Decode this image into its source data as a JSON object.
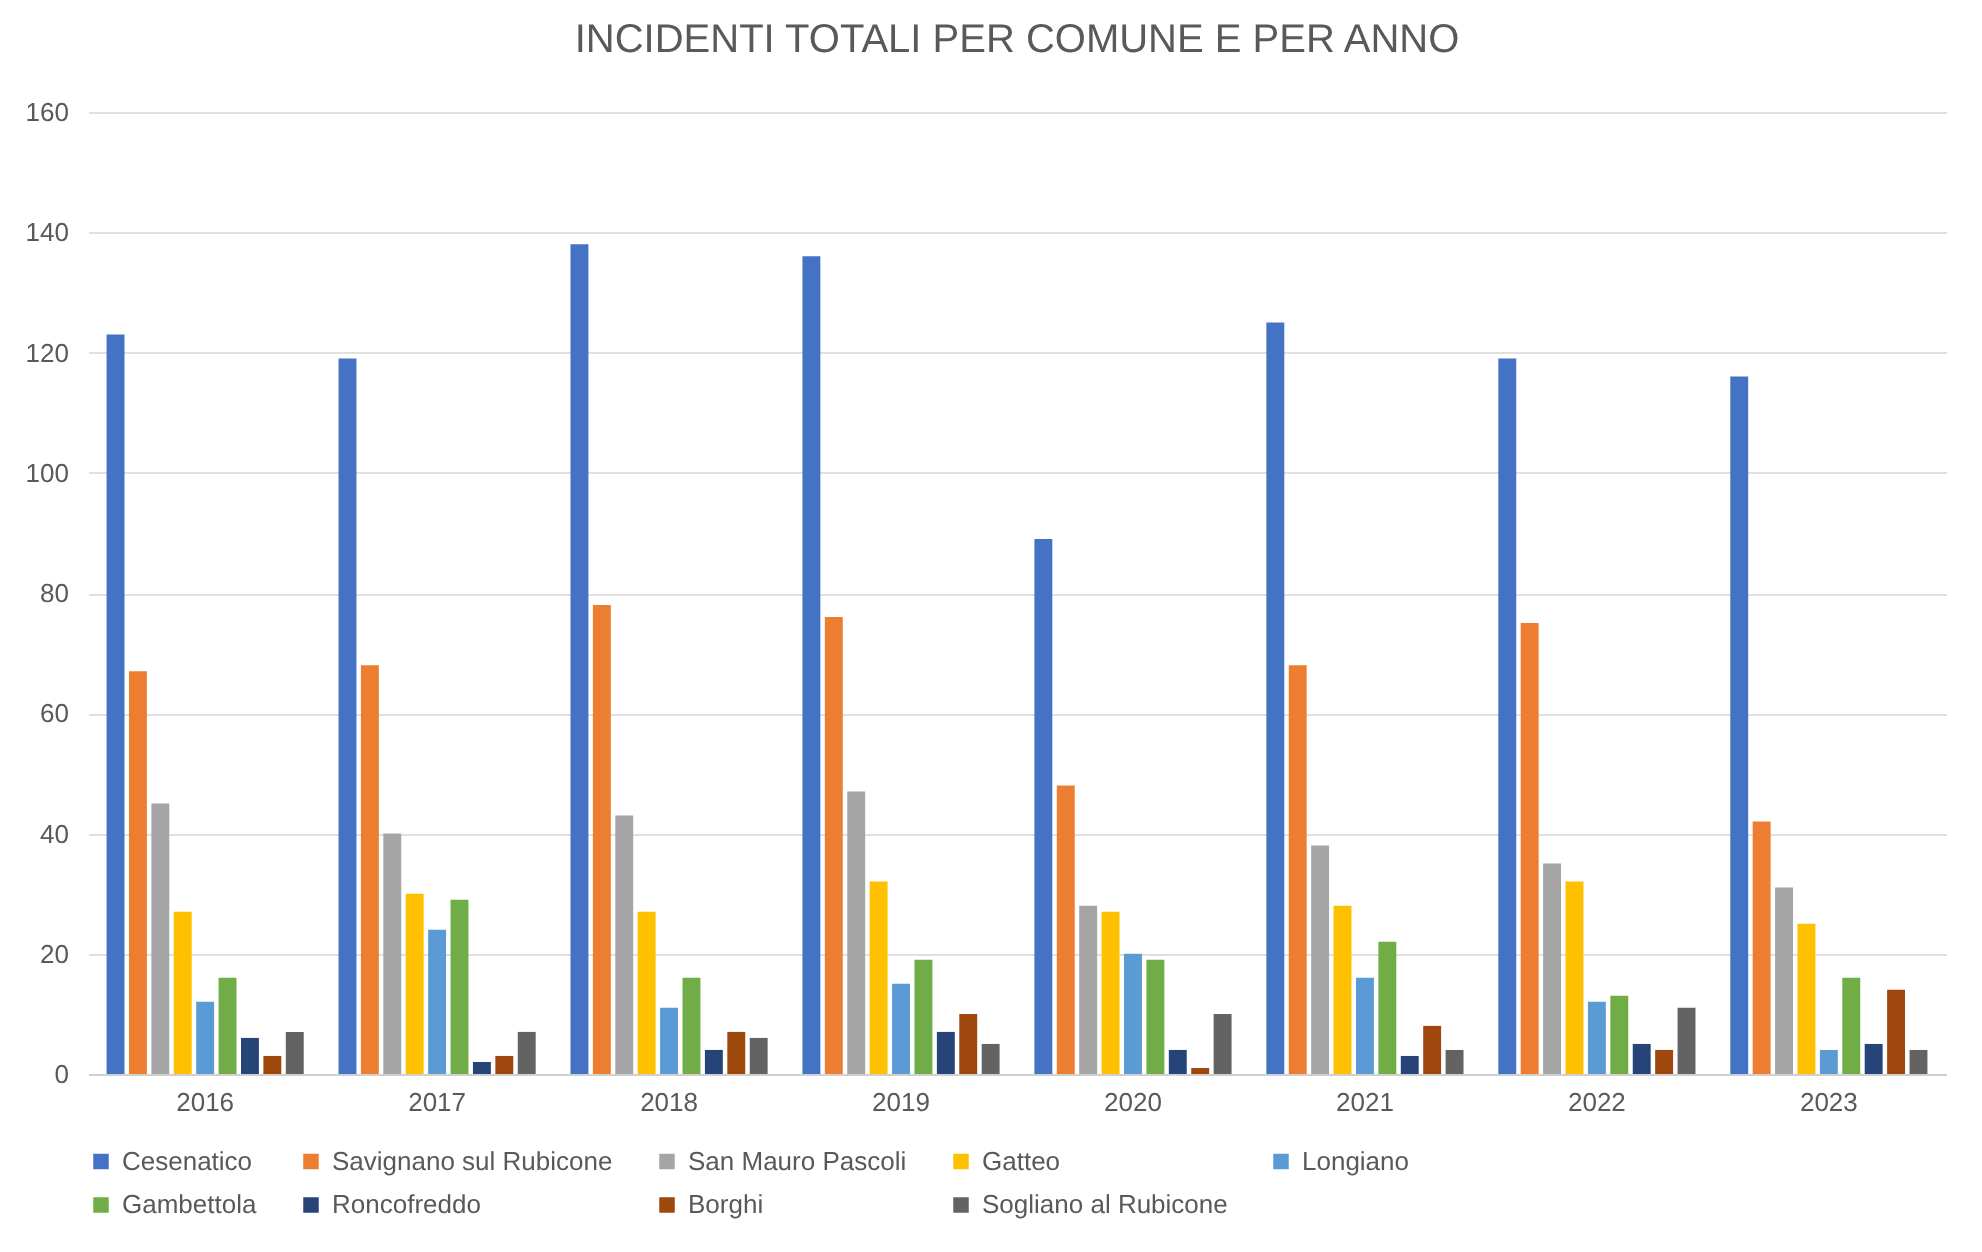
{
  "chart_data": {
    "type": "bar",
    "title": "INCIDENTI TOTALI PER COMUNE E PER ANNO",
    "categories": [
      "2016",
      "2017",
      "2018",
      "2019",
      "2020",
      "2021",
      "2022",
      "2023"
    ],
    "series": [
      {
        "name": "Cesenatico",
        "color": "#4472c4",
        "values": [
          123,
          119,
          138,
          136,
          89,
          125,
          119,
          116
        ]
      },
      {
        "name": "Savignano sul Rubicone",
        "color": "#ed7d31",
        "values": [
          67,
          68,
          78,
          76,
          48,
          68,
          75,
          42
        ]
      },
      {
        "name": "San Mauro Pascoli",
        "color": "#a5a5a5",
        "values": [
          45,
          40,
          43,
          47,
          28,
          38,
          35,
          31
        ]
      },
      {
        "name": "Gatteo",
        "color": "#ffc000",
        "values": [
          27,
          30,
          27,
          32,
          27,
          28,
          32,
          25
        ]
      },
      {
        "name": "Longiano",
        "color": "#5b9bd5",
        "values": [
          12,
          24,
          11,
          15,
          20,
          16,
          12,
          4
        ]
      },
      {
        "name": "Gambettola",
        "color": "#70ad47",
        "values": [
          16,
          29,
          16,
          19,
          19,
          22,
          13,
          16
        ]
      },
      {
        "name": "Roncofreddo",
        "color": "#264478",
        "values": [
          6,
          2,
          4,
          7,
          4,
          3,
          5,
          5
        ]
      },
      {
        "name": "Borghi",
        "color": "#9e480e",
        "values": [
          3,
          3,
          7,
          10,
          1,
          8,
          4,
          14
        ]
      },
      {
        "name": "Sogliano al Rubicone",
        "color": "#636363",
        "values": [
          7,
          7,
          6,
          5,
          10,
          4,
          11,
          4
        ]
      }
    ],
    "ylim": [
      0,
      160
    ],
    "yticks": [
      0,
      20,
      40,
      60,
      80,
      100,
      120,
      140,
      160
    ],
    "grid": "y",
    "legend": "bottom"
  }
}
